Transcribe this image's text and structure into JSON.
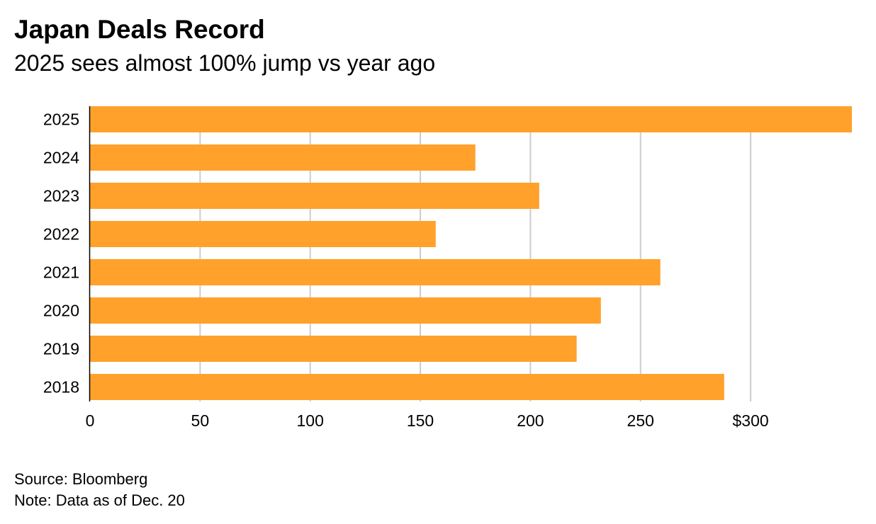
{
  "title": "Japan Deals Record",
  "subtitle": "2025 sees almost 100% jump vs year ago",
  "source": "Source: Bloomberg",
  "note": "Note: Data as of Dec. 20",
  "colors": {
    "bar": "#ffa12b",
    "grid": "#cccccc",
    "axis": "#000000"
  },
  "chart_data": {
    "type": "bar",
    "orientation": "horizontal",
    "categories": [
      "2025",
      "2024",
      "2023",
      "2022",
      "2021",
      "2020",
      "2019",
      "2018"
    ],
    "values": [
      346,
      175,
      204,
      157,
      259,
      232,
      221,
      288
    ],
    "xlim": [
      0,
      346
    ],
    "xticks": [
      0,
      50,
      100,
      150,
      200,
      250,
      300
    ],
    "xtick_labels": [
      "0",
      "50",
      "100",
      "150",
      "200",
      "250",
      "$300"
    ],
    "grid": true
  }
}
